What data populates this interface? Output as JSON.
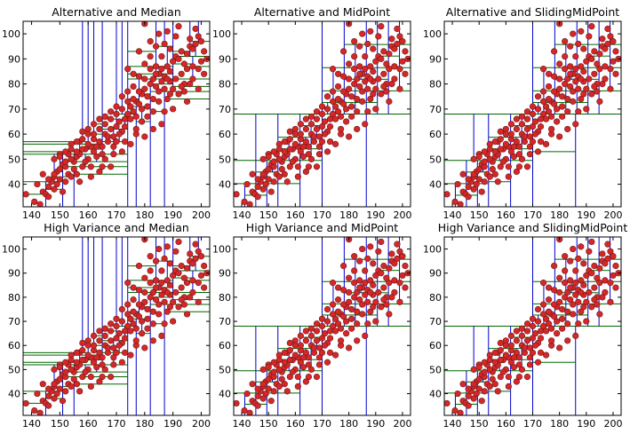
{
  "chart_data": [
    {
      "type": "scatter",
      "title": "Alternative and Median",
      "xlim": [
        137,
        203
      ],
      "ylim": [
        31,
        105
      ],
      "xticks": [
        "140",
        "150",
        "160",
        "170",
        "180",
        "190",
        "200"
      ],
      "yticks": [
        "40",
        "50",
        "60",
        "70",
        "80",
        "90",
        "100"
      ],
      "partition": "median"
    },
    {
      "type": "scatter",
      "title": "Alternative and MidPoint",
      "xlim": [
        137,
        203
      ],
      "ylim": [
        31,
        105
      ],
      "xticks": [
        "140",
        "150",
        "160",
        "170",
        "180",
        "190",
        "200"
      ],
      "yticks": [
        "40",
        "50",
        "60",
        "70",
        "80",
        "90",
        "100"
      ],
      "partition": "midpoint"
    },
    {
      "type": "scatter",
      "title": "Alternative and SlidingMidPoint",
      "xlim": [
        137,
        203
      ],
      "ylim": [
        31,
        105
      ],
      "xticks": [
        "140",
        "150",
        "160",
        "170",
        "180",
        "190",
        "200"
      ],
      "yticks": [
        "40",
        "50",
        "60",
        "70",
        "80",
        "90",
        "100"
      ],
      "partition": "sliding"
    },
    {
      "type": "scatter",
      "title": "High Variance and Median",
      "xlim": [
        137,
        203
      ],
      "ylim": [
        31,
        105
      ],
      "xticks": [
        "140",
        "150",
        "160",
        "170",
        "180",
        "190",
        "200"
      ],
      "yticks": [
        "40",
        "50",
        "60",
        "70",
        "80",
        "90",
        "100"
      ],
      "partition": "median"
    },
    {
      "type": "scatter",
      "title": "High Variance and MidPoint",
      "xlim": [
        137,
        203
      ],
      "ylim": [
        31,
        105
      ],
      "xticks": [
        "140",
        "150",
        "160",
        "170",
        "180",
        "190",
        "200"
      ],
      "yticks": [
        "40",
        "50",
        "60",
        "70",
        "80",
        "90",
        "100"
      ],
      "partition": "midpoint"
    },
    {
      "type": "scatter",
      "title": "High Variance and SlidingMidPoint",
      "xlim": [
        137,
        203
      ],
      "ylim": [
        31,
        105
      ],
      "xticks": [
        "140",
        "150",
        "160",
        "170",
        "180",
        "190",
        "200"
      ],
      "yticks": [
        "40",
        "50",
        "60",
        "70",
        "80",
        "90",
        "100"
      ],
      "partition": "sliding"
    }
  ],
  "points": [
    [
      138,
      36
    ],
    [
      141,
      33
    ],
    [
      143,
      32
    ],
    [
      144,
      37
    ],
    [
      145,
      36
    ],
    [
      146,
      39
    ],
    [
      147,
      41
    ],
    [
      148,
      43
    ],
    [
      149,
      45
    ],
    [
      150,
      42
    ],
    [
      151,
      48
    ],
    [
      152,
      47
    ],
    [
      153,
      44
    ],
    [
      154,
      43
    ],
    [
      155,
      49
    ],
    [
      156,
      51
    ],
    [
      157,
      52
    ],
    [
      158,
      47
    ],
    [
      159,
      54
    ],
    [
      160,
      50
    ],
    [
      161,
      55
    ],
    [
      162,
      53
    ],
    [
      163,
      51
    ],
    [
      164,
      57
    ],
    [
      165,
      55
    ],
    [
      166,
      60
    ],
    [
      167,
      57
    ],
    [
      168,
      62
    ],
    [
      169,
      59
    ],
    [
      170,
      63
    ],
    [
      171,
      65
    ],
    [
      172,
      61
    ],
    [
      173,
      66
    ],
    [
      174,
      68
    ],
    [
      175,
      71
    ],
    [
      176,
      69
    ],
    [
      177,
      73
    ],
    [
      178,
      72
    ],
    [
      179,
      76
    ],
    [
      180,
      78
    ],
    [
      181,
      75
    ],
    [
      182,
      80
    ],
    [
      183,
      82
    ],
    [
      184,
      79
    ],
    [
      185,
      84
    ],
    [
      186,
      86
    ],
    [
      187,
      83
    ],
    [
      188,
      87
    ],
    [
      189,
      85
    ],
    [
      190,
      89
    ],
    [
      191,
      91
    ],
    [
      192,
      90
    ],
    [
      193,
      93
    ],
    [
      194,
      88
    ],
    [
      195,
      92
    ],
    [
      196,
      95
    ],
    [
      197,
      94
    ],
    [
      198,
      96
    ],
    [
      199,
      99
    ],
    [
      200,
      97
    ],
    [
      201,
      93
    ],
    [
      199,
      86
    ],
    [
      196,
      80
    ],
    [
      194,
      77
    ],
    [
      190,
      70
    ],
    [
      188,
      74
    ],
    [
      186,
      91
    ],
    [
      184,
      95
    ],
    [
      182,
      97
    ],
    [
      180,
      88
    ],
    [
      178,
      83
    ],
    [
      176,
      79
    ],
    [
      174,
      77
    ],
    [
      172,
      70
    ],
    [
      170,
      68
    ],
    [
      168,
      66
    ],
    [
      166,
      64
    ],
    [
      164,
      62
    ],
    [
      162,
      58
    ],
    [
      160,
      56
    ],
    [
      158,
      54
    ],
    [
      156,
      53
    ],
    [
      154,
      50
    ],
    [
      152,
      49
    ],
    [
      150,
      46
    ],
    [
      148,
      44
    ],
    [
      146,
      42
    ],
    [
      151,
      37
    ],
    [
      149,
      40
    ],
    [
      153,
      52
    ],
    [
      155,
      46
    ],
    [
      157,
      57
    ],
    [
      159,
      49
    ],
    [
      161,
      47
    ],
    [
      163,
      55
    ],
    [
      165,
      52
    ],
    [
      167,
      59
    ],
    [
      169,
      55
    ],
    [
      171,
      60
    ],
    [
      173,
      63
    ],
    [
      175,
      66
    ],
    [
      177,
      67
    ],
    [
      179,
      70
    ],
    [
      181,
      71
    ],
    [
      183,
      74
    ],
    [
      185,
      77
    ],
    [
      187,
      78
    ],
    [
      189,
      81
    ],
    [
      191,
      82
    ],
    [
      193,
      84
    ],
    [
      195,
      86
    ],
    [
      197,
      87
    ],
    [
      186,
      64
    ],
    [
      180,
      59
    ],
    [
      176,
      84
    ],
    [
      174,
      86
    ],
    [
      178,
      93
    ],
    [
      182,
      91
    ],
    [
      184,
      87
    ],
    [
      188,
      82
    ],
    [
      190,
      78
    ],
    [
      192,
      76
    ],
    [
      194,
      80
    ],
    [
      196,
      98
    ],
    [
      198,
      102
    ],
    [
      200,
      89
    ],
    [
      202,
      90
    ],
    [
      185,
      100
    ],
    [
      187,
      96
    ],
    [
      189,
      94
    ],
    [
      191,
      99
    ],
    [
      183,
      69
    ],
    [
      179,
      65
    ],
    [
      177,
      60
    ],
    [
      175,
      56
    ],
    [
      172,
      53
    ],
    [
      170,
      57
    ],
    [
      168,
      47
    ],
    [
      166,
      50
    ],
    [
      164,
      45
    ],
    [
      162,
      60
    ],
    [
      160,
      62
    ],
    [
      158,
      58
    ],
    [
      156,
      44
    ],
    [
      154,
      56
    ],
    [
      152,
      41
    ],
    [
      150,
      52
    ],
    [
      148,
      38
    ],
    [
      146,
      35
    ],
    [
      144,
      44
    ],
    [
      142,
      40
    ],
    [
      157,
      41
    ],
    [
      161,
      43
    ],
    [
      165,
      47
    ],
    [
      169,
      52
    ],
    [
      173,
      57
    ],
    [
      177,
      62
    ],
    [
      181,
      67
    ],
    [
      185,
      73
    ],
    [
      189,
      76
    ],
    [
      193,
      79
    ],
    [
      197,
      82
    ],
    [
      201,
      84
    ],
    [
      195,
      73
    ],
    [
      187,
      69
    ],
    [
      183,
      62
    ],
    [
      180,
      104
    ],
    [
      188,
      101
    ],
    [
      192,
      103
    ],
    [
      199,
      78
    ],
    [
      184,
      84
    ],
    [
      186,
      81
    ],
    [
      182,
      86
    ],
    [
      180,
      82
    ],
    [
      178,
      77
    ],
    [
      176,
      74
    ],
    [
      174,
      73
    ],
    [
      172,
      75
    ],
    [
      170,
      71
    ],
    [
      168,
      69
    ],
    [
      166,
      67
    ],
    [
      164,
      66
    ],
    [
      162,
      64
    ],
    [
      160,
      60
    ],
    [
      158,
      61
    ],
    [
      156,
      57
    ],
    [
      154,
      54
    ],
    [
      152,
      53
    ],
    [
      150,
      51
    ],
    [
      148,
      50
    ]
  ]
}
